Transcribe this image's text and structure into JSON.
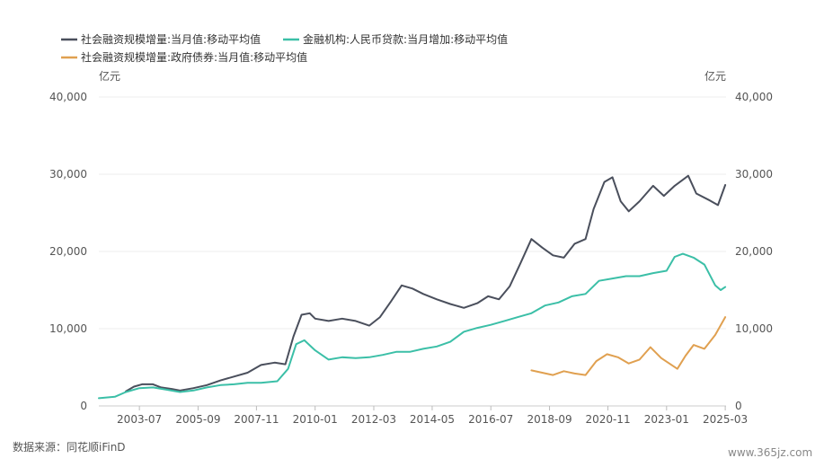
{
  "source": "数据来源：同花顺iFinD",
  "watermark": "www.365jz.com",
  "chart_data": {
    "type": "line",
    "y_unit_left": "亿元",
    "y_unit_right": "亿元",
    "ylim": [
      0,
      40000
    ],
    "y_ticks": [
      "0",
      "10,000",
      "20,000",
      "30,000",
      "40,000"
    ],
    "y_tick_values": [
      0,
      10000,
      20000,
      30000,
      40000
    ],
    "x_tick_labels": [
      "2003-07",
      "2005-09",
      "2007-11",
      "2010-01",
      "2012-03",
      "2014-05",
      "2016-07",
      "2018-09",
      "2020-11",
      "2023-01",
      "2025-03"
    ],
    "x_tick_values": [
      2003.5,
      2005.67,
      2007.83,
      2010.0,
      2012.17,
      2014.33,
      2016.5,
      2018.67,
      2020.83,
      2023.0,
      2025.17
    ],
    "xlim": [
      2002.0,
      2025.2
    ],
    "grid": true,
    "legend_position": "top-left",
    "series": [
      {
        "name": "社会融资规模增量:当月值:移动平均值",
        "color": "#4a4f5c",
        "points": [
          [
            2003.0,
            1900
          ],
          [
            2003.3,
            2500
          ],
          [
            2003.6,
            2800
          ],
          [
            2004.0,
            2800
          ],
          [
            2004.3,
            2400
          ],
          [
            2004.7,
            2200
          ],
          [
            2005.0,
            2000
          ],
          [
            2005.5,
            2300
          ],
          [
            2006.0,
            2700
          ],
          [
            2006.5,
            3300
          ],
          [
            2007.0,
            3800
          ],
          [
            2007.5,
            4300
          ],
          [
            2008.0,
            5300
          ],
          [
            2008.5,
            5600
          ],
          [
            2008.9,
            5400
          ],
          [
            2009.2,
            9000
          ],
          [
            2009.5,
            11800
          ],
          [
            2009.8,
            12000
          ],
          [
            2010.0,
            11300
          ],
          [
            2010.5,
            11000
          ],
          [
            2011.0,
            11300
          ],
          [
            2011.5,
            11000
          ],
          [
            2012.0,
            10400
          ],
          [
            2012.4,
            11500
          ],
          [
            2012.8,
            13500
          ],
          [
            2013.2,
            15600
          ],
          [
            2013.6,
            15200
          ],
          [
            2014.0,
            14500
          ],
          [
            2014.5,
            13800
          ],
          [
            2015.0,
            13200
          ],
          [
            2015.5,
            12700
          ],
          [
            2016.0,
            13300
          ],
          [
            2016.4,
            14200
          ],
          [
            2016.8,
            13800
          ],
          [
            2017.2,
            15500
          ],
          [
            2017.6,
            18500
          ],
          [
            2018.0,
            21600
          ],
          [
            2018.4,
            20500
          ],
          [
            2018.8,
            19500
          ],
          [
            2019.2,
            19200
          ],
          [
            2019.6,
            21000
          ],
          [
            2020.0,
            21600
          ],
          [
            2020.3,
            25500
          ],
          [
            2020.7,
            29000
          ],
          [
            2021.0,
            29600
          ],
          [
            2021.3,
            26500
          ],
          [
            2021.6,
            25200
          ],
          [
            2022.0,
            26500
          ],
          [
            2022.5,
            28500
          ],
          [
            2022.9,
            27200
          ],
          [
            2023.3,
            28500
          ],
          [
            2023.8,
            29800
          ],
          [
            2024.1,
            27500
          ],
          [
            2024.6,
            26600
          ],
          [
            2024.9,
            26000
          ],
          [
            2025.17,
            28600
          ]
        ]
      },
      {
        "name": "金融机构:人民币贷款:当月增加:移动平均值",
        "color": "#3bbfa7",
        "points": [
          [
            2002.0,
            1000
          ],
          [
            2002.6,
            1200
          ],
          [
            2003.0,
            1800
          ],
          [
            2003.5,
            2300
          ],
          [
            2004.0,
            2400
          ],
          [
            2004.5,
            2100
          ],
          [
            2005.0,
            1800
          ],
          [
            2005.5,
            2000
          ],
          [
            2006.0,
            2400
          ],
          [
            2006.5,
            2700
          ],
          [
            2007.0,
            2800
          ],
          [
            2007.5,
            3000
          ],
          [
            2008.0,
            3000
          ],
          [
            2008.6,
            3200
          ],
          [
            2009.0,
            4800
          ],
          [
            2009.3,
            8000
          ],
          [
            2009.6,
            8500
          ],
          [
            2010.0,
            7200
          ],
          [
            2010.5,
            6000
          ],
          [
            2011.0,
            6300
          ],
          [
            2011.5,
            6200
          ],
          [
            2012.0,
            6300
          ],
          [
            2012.5,
            6600
          ],
          [
            2013.0,
            7000
          ],
          [
            2013.5,
            7000
          ],
          [
            2014.0,
            7400
          ],
          [
            2014.5,
            7700
          ],
          [
            2015.0,
            8300
          ],
          [
            2015.5,
            9600
          ],
          [
            2016.0,
            10100
          ],
          [
            2016.5,
            10500
          ],
          [
            2017.0,
            11000
          ],
          [
            2017.5,
            11500
          ],
          [
            2018.0,
            12000
          ],
          [
            2018.5,
            13000
          ],
          [
            2019.0,
            13400
          ],
          [
            2019.5,
            14200
          ],
          [
            2020.0,
            14500
          ],
          [
            2020.5,
            16200
          ],
          [
            2021.0,
            16500
          ],
          [
            2021.5,
            16800
          ],
          [
            2022.0,
            16800
          ],
          [
            2022.5,
            17200
          ],
          [
            2023.0,
            17500
          ],
          [
            2023.3,
            19300
          ],
          [
            2023.6,
            19700
          ],
          [
            2024.0,
            19200
          ],
          [
            2024.4,
            18300
          ],
          [
            2024.8,
            15600
          ],
          [
            2025.0,
            15000
          ],
          [
            2025.17,
            15400
          ]
        ]
      },
      {
        "name": "社会融资规模增量:政府债券:当月值:移动平均值",
        "color": "#e0a050",
        "points": [
          [
            2018.0,
            4600
          ],
          [
            2018.4,
            4300
          ],
          [
            2018.8,
            4000
          ],
          [
            2019.2,
            4500
          ],
          [
            2019.6,
            4200
          ],
          [
            2020.0,
            4000
          ],
          [
            2020.4,
            5800
          ],
          [
            2020.8,
            6700
          ],
          [
            2021.2,
            6300
          ],
          [
            2021.6,
            5500
          ],
          [
            2022.0,
            6000
          ],
          [
            2022.4,
            7600
          ],
          [
            2022.8,
            6200
          ],
          [
            2023.1,
            5500
          ],
          [
            2023.4,
            4800
          ],
          [
            2023.7,
            6500
          ],
          [
            2024.0,
            7900
          ],
          [
            2024.4,
            7400
          ],
          [
            2024.8,
            9200
          ],
          [
            2025.17,
            11500
          ]
        ]
      }
    ]
  }
}
